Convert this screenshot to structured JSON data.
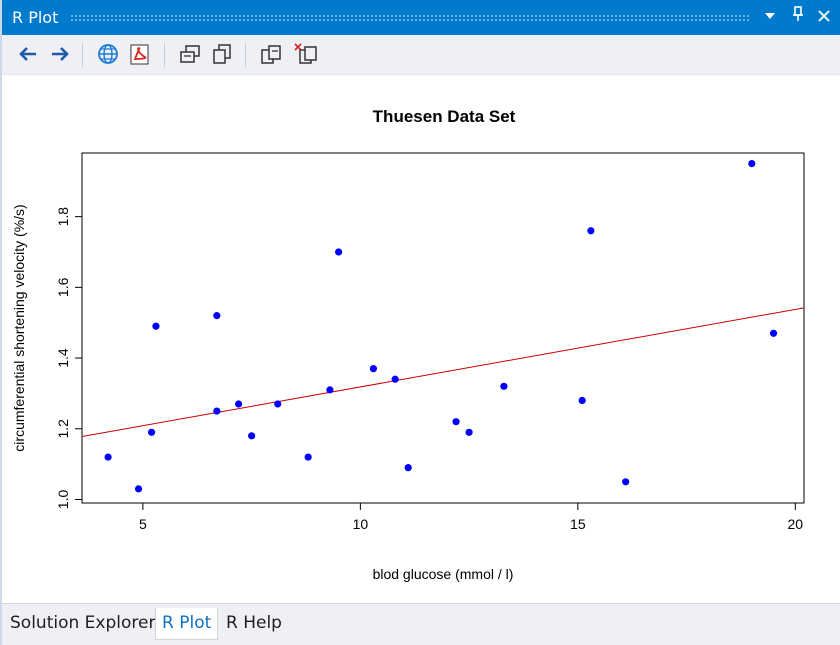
{
  "window": {
    "title": "R Plot",
    "dropdown_icon": "triangle-down-icon",
    "pin_icon": "pin-icon",
    "close_icon": "close-icon"
  },
  "toolbar": {
    "buttons": [
      {
        "name": "back-button",
        "icon": "arrow-left-icon"
      },
      {
        "name": "forward-button",
        "icon": "arrow-right-icon"
      },
      {
        "name": "export-web-button",
        "icon": "globe-icon"
      },
      {
        "name": "export-pdf-button",
        "icon": "pdf-icon"
      },
      {
        "name": "copy-image-button",
        "icon": "copy-image-icon"
      },
      {
        "name": "copy-metafile-button",
        "icon": "copy-metafile-icon"
      },
      {
        "name": "remove-plot-button",
        "icon": "remove-plot-icon"
      },
      {
        "name": "clear-plots-button",
        "icon": "clear-all-plots-icon"
      }
    ]
  },
  "chart_data": {
    "type": "scatter",
    "title": "Thuesen Data Set",
    "xlabel": "blod glucose (mmol / l)",
    "ylabel": "circumferential shortening velocity (%/s)",
    "xlim": [
      3.6,
      20.2
    ],
    "ylim": [
      0.99,
      1.98
    ],
    "xticks": [
      5,
      10,
      15,
      20
    ],
    "yticks": [
      1.0,
      1.2,
      1.4,
      1.6,
      1.8
    ],
    "ytick_labels": [
      "1.0",
      "1.2",
      "1.4",
      "1.6",
      "1.8"
    ],
    "grid": false,
    "point_color": "#0000ff",
    "line_color": "#cc0000",
    "points": [
      {
        "x": 4.2,
        "y": 1.12
      },
      {
        "x": 4.9,
        "y": 1.03
      },
      {
        "x": 5.2,
        "y": 1.19
      },
      {
        "x": 5.3,
        "y": 1.49
      },
      {
        "x": 6.7,
        "y": 1.25
      },
      {
        "x": 6.7,
        "y": 1.52
      },
      {
        "x": 7.2,
        "y": 1.27
      },
      {
        "x": 7.5,
        "y": 1.18
      },
      {
        "x": 8.1,
        "y": 1.27
      },
      {
        "x": 8.8,
        "y": 1.12
      },
      {
        "x": 9.3,
        "y": 1.31
      },
      {
        "x": 9.5,
        "y": 1.7
      },
      {
        "x": 10.3,
        "y": 1.37
      },
      {
        "x": 10.8,
        "y": 1.34
      },
      {
        "x": 11.1,
        "y": 1.09
      },
      {
        "x": 12.2,
        "y": 1.22
      },
      {
        "x": 12.5,
        "y": 1.19
      },
      {
        "x": 13.3,
        "y": 1.32
      },
      {
        "x": 15.1,
        "y": 1.28
      },
      {
        "x": 15.3,
        "y": 1.76
      },
      {
        "x": 16.1,
        "y": 1.05
      },
      {
        "x": 19.0,
        "y": 1.95
      },
      {
        "x": 19.5,
        "y": 1.47
      }
    ],
    "regression_line": {
      "x": [
        3.6,
        20.2
      ],
      "y": [
        1.178,
        1.542
      ]
    }
  },
  "tabs": [
    {
      "label": "Solution Explorer",
      "active": false
    },
    {
      "label": "R Plot",
      "active": true
    },
    {
      "label": "R Help",
      "active": false
    }
  ]
}
